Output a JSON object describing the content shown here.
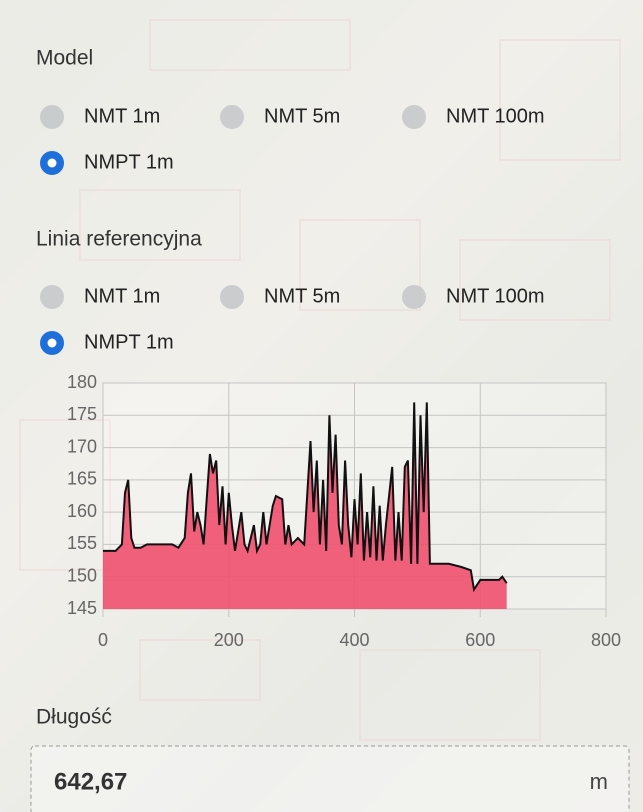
{
  "model": {
    "title": "Model",
    "options": [
      {
        "label": "NMT 1m",
        "checked": false
      },
      {
        "label": "NMT 5m",
        "checked": false
      },
      {
        "label": "NMT 100m",
        "checked": false
      },
      {
        "label": "NMPT 1m",
        "checked": true
      }
    ]
  },
  "reference": {
    "title": "Linia referencyjna",
    "options": [
      {
        "label": "NMT 1m",
        "checked": false
      },
      {
        "label": "NMT 5m",
        "checked": false
      },
      {
        "label": "NMT 100m",
        "checked": false
      },
      {
        "label": "NMPT 1m",
        "checked": true
      }
    ]
  },
  "chart_data": {
    "type": "area",
    "line_color": "#111111",
    "fill_color": "#f0506e",
    "x": [
      0,
      20,
      30,
      35,
      40,
      45,
      50,
      60,
      70,
      100,
      110,
      120,
      130,
      135,
      140,
      145,
      150,
      155,
      160,
      165,
      170,
      175,
      180,
      185,
      190,
      195,
      200,
      205,
      210,
      220,
      225,
      230,
      240,
      245,
      250,
      255,
      260,
      270,
      275,
      285,
      290,
      295,
      300,
      310,
      320,
      330,
      335,
      340,
      345,
      350,
      355,
      360,
      365,
      370,
      375,
      380,
      385,
      390,
      395,
      400,
      405,
      410,
      415,
      420,
      425,
      430,
      435,
      440,
      445,
      450,
      460,
      465,
      470,
      475,
      480,
      485,
      490,
      495,
      500,
      505,
      510,
      515,
      520,
      530,
      550,
      570,
      585,
      590,
      600,
      620,
      630,
      635,
      642
    ],
    "values": [
      154,
      154,
      155,
      163,
      165,
      156,
      154.5,
      154.5,
      155,
      155,
      155,
      154.5,
      156,
      163,
      166,
      157,
      160,
      158,
      155,
      162,
      169,
      166,
      168,
      158,
      164,
      155,
      163,
      158,
      154,
      160,
      155,
      154,
      158,
      154,
      155,
      160,
      155,
      161,
      162.5,
      162,
      155,
      158,
      155,
      156,
      155,
      171,
      160,
      168,
      155,
      165,
      154,
      175,
      163,
      172,
      158,
      155,
      168,
      158,
      153,
      162,
      155,
      166,
      152.5,
      160,
      153,
      164,
      152.5,
      161,
      152.5,
      158,
      167,
      152.5,
      160,
      152.5,
      167,
      168,
      152,
      177,
      152,
      175,
      160,
      177,
      152,
      152,
      152,
      151.5,
      151,
      148,
      149.5,
      149.5,
      149.5,
      150,
      149
    ],
    "xlim": [
      0,
      800
    ],
    "xticks": [
      0,
      200,
      400,
      600,
      800
    ],
    "ylim": [
      145,
      180
    ],
    "yticks": [
      145,
      150,
      155,
      160,
      165,
      170,
      175,
      180
    ],
    "grid": true
  },
  "length": {
    "label": "Długość",
    "value": "642,67",
    "unit": "m"
  }
}
